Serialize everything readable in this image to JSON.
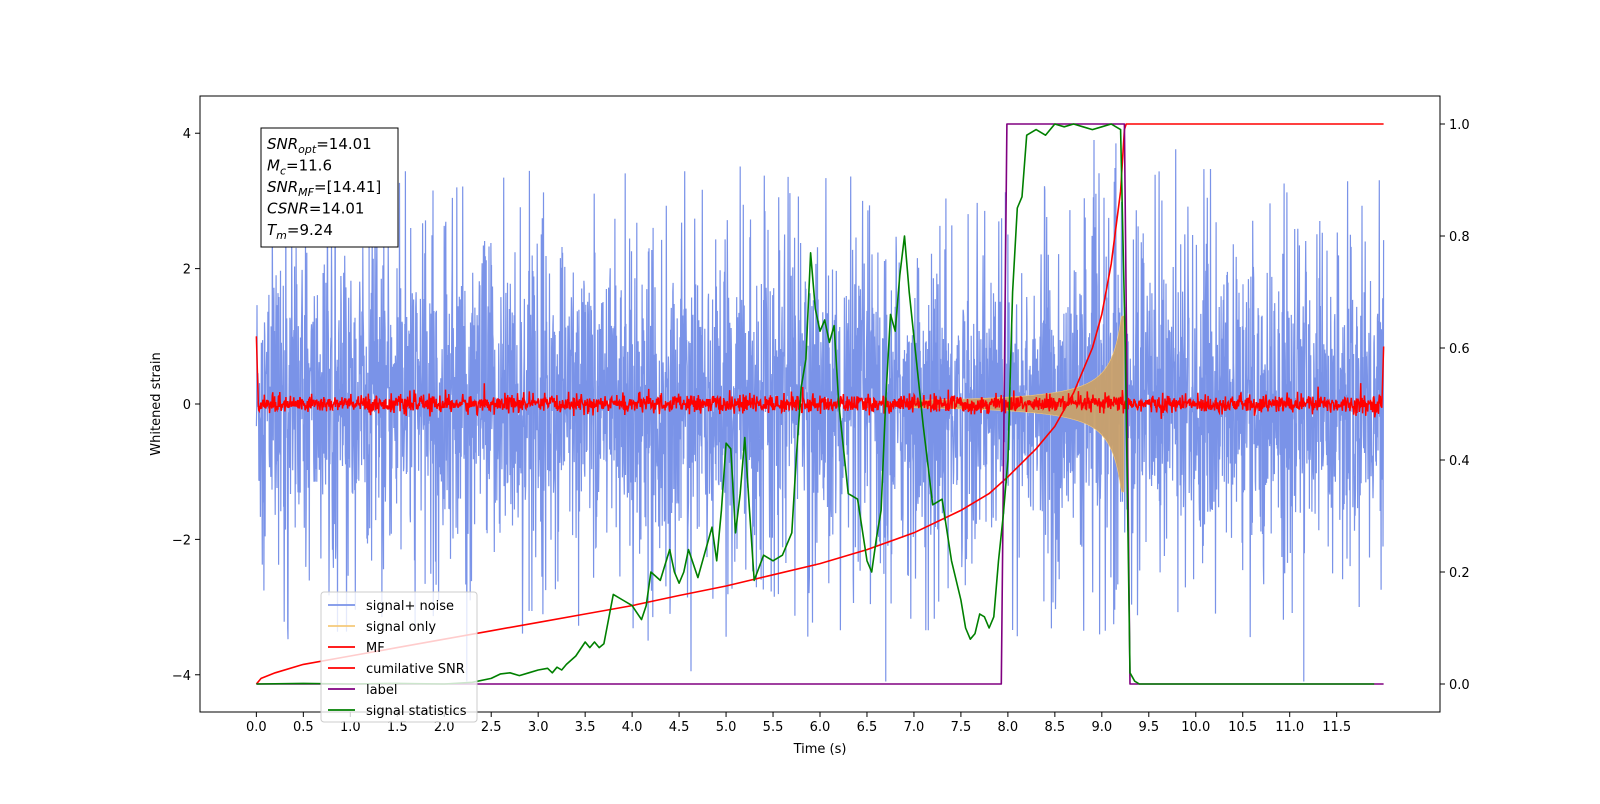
{
  "chart_data": {
    "type": "line",
    "xlabel": "Time (s)",
    "ylabel": "Whitened strain",
    "xlim": [
      -0.6,
      12.6
    ],
    "ylim_left": [
      -4.55,
      4.55
    ],
    "ylim_right": [
      -0.05,
      1.05
    ],
    "x_ticks": [
      0.0,
      0.5,
      1.0,
      1.5,
      2.0,
      2.5,
      3.0,
      3.5,
      4.0,
      4.5,
      5.0,
      5.5,
      6.0,
      6.5,
      7.0,
      7.5,
      8.0,
      8.5,
      9.0,
      9.5,
      10.0,
      10.5,
      11.0,
      11.5
    ],
    "x_tick_labels": [
      "0.0",
      "0.5",
      "1.0",
      "1.5",
      "2.0",
      "2.5",
      "3.0",
      "3.5",
      "4.0",
      "4.5",
      "5.0",
      "5.5",
      "6.0",
      "6.5",
      "7.0",
      "7.5",
      "8.0",
      "8.5",
      "9.0",
      "9.5",
      "10.0",
      "10.5",
      "11.0",
      "11.5"
    ],
    "y_left_ticks": [
      -4,
      -2,
      0,
      2,
      4
    ],
    "y_left_tick_labels": [
      "−4",
      "−2",
      "0",
      "2",
      "4"
    ],
    "y_right_ticks": [
      0.0,
      0.2,
      0.4,
      0.6,
      0.8,
      1.0
    ],
    "y_right_tick_labels": [
      "0.0",
      "0.2",
      "0.4",
      "0.6",
      "0.8",
      "1.0"
    ],
    "legend_position": "lower-left",
    "annotation": {
      "lines": [
        {
          "base": "SNR",
          "sub": "opt",
          "rest": "=14.01"
        },
        {
          "base": "M",
          "sub": "c",
          "rest": "=11.6"
        },
        {
          "base": "SNR",
          "sub": "MF",
          "rest": "=[14.41]"
        },
        {
          "base": "CSNR",
          "sub": "",
          "rest": "=14.01"
        },
        {
          "base": "T",
          "sub": "m",
          "rest": "=9.24"
        }
      ]
    },
    "series": [
      {
        "name": "signal+ noise",
        "color": "#7a93e8",
        "axis": "left",
        "description_values": {
          "x_range": [
            0.0,
            12.0
          ],
          "envelope_typical": [
            -2.8,
            3.0
          ],
          "extreme_min": -4.1,
          "extreme_max": 3.9
        }
      },
      {
        "name": "signal only",
        "color": "#f5c97a",
        "axis": "left",
        "description_values": {
          "chirp_start": 7.0,
          "merger": 9.24,
          "peak_amplitude": 1.3
        }
      },
      {
        "name": "MF",
        "color": "#ff0000",
        "axis": "left",
        "description_values": {
          "baseline": 0.0,
          "noise_amplitude": 0.12,
          "start_value": 1.0,
          "end_value": 0.85
        }
      },
      {
        "name": "cumilative SNR",
        "color": "#ff0000",
        "axis": "right",
        "x": [
          0.0,
          0.05,
          0.2,
          0.5,
          1.0,
          1.5,
          2.0,
          2.5,
          3.0,
          3.5,
          4.0,
          4.5,
          5.0,
          5.5,
          6.0,
          6.5,
          7.0,
          7.5,
          7.8,
          8.0,
          8.3,
          8.5,
          8.7,
          8.9,
          9.0,
          9.1,
          9.2,
          9.24,
          9.26,
          10.0,
          11.0,
          12.0
        ],
        "y": [
          0.0,
          0.01,
          0.02,
          0.035,
          0.05,
          0.065,
          0.08,
          0.095,
          0.11,
          0.125,
          0.14,
          0.158,
          0.175,
          0.195,
          0.215,
          0.24,
          0.27,
          0.31,
          0.34,
          0.37,
          0.42,
          0.46,
          0.52,
          0.6,
          0.66,
          0.75,
          0.88,
          0.99,
          1.0,
          1.0,
          1.0,
          1.0
        ]
      },
      {
        "name": "label",
        "color": "#800080",
        "axis": "right",
        "x": [
          0.0,
          7.93,
          7.99,
          9.24,
          9.3,
          12.0
        ],
        "y": [
          0.0,
          0.0,
          1.0,
          1.0,
          0.0,
          0.0
        ]
      },
      {
        "name": "signal statistics",
        "color": "#008000",
        "axis": "right",
        "x": [
          0.0,
          0.5,
          1.0,
          1.5,
          2.0,
          2.3,
          2.5,
          2.6,
          2.7,
          2.8,
          2.9,
          3.0,
          3.1,
          3.15,
          3.2,
          3.25,
          3.3,
          3.4,
          3.5,
          3.55,
          3.6,
          3.65,
          3.7,
          3.8,
          3.9,
          4.0,
          4.1,
          4.15,
          4.2,
          4.3,
          4.4,
          4.45,
          4.5,
          4.55,
          4.6,
          4.7,
          4.75,
          4.8,
          4.85,
          4.9,
          4.95,
          5.0,
          5.05,
          5.1,
          5.15,
          5.2,
          5.25,
          5.3,
          5.4,
          5.5,
          5.6,
          5.7,
          5.75,
          5.8,
          5.85,
          5.9,
          5.95,
          6.0,
          6.05,
          6.1,
          6.15,
          6.2,
          6.3,
          6.4,
          6.5,
          6.55,
          6.6,
          6.65,
          6.7,
          6.75,
          6.8,
          6.85,
          6.9,
          6.95,
          7.0,
          7.05,
          7.1,
          7.2,
          7.3,
          7.4,
          7.5,
          7.55,
          7.6,
          7.65,
          7.7,
          7.75,
          7.8,
          7.85,
          7.9,
          7.95,
          8.0,
          8.05,
          8.1,
          8.15,
          8.2,
          8.3,
          8.4,
          8.5,
          8.6,
          8.7,
          8.8,
          8.9,
          9.0,
          9.1,
          9.2,
          9.25,
          9.3,
          9.35,
          9.4,
          9.5,
          10.0,
          11.0,
          11.9
        ],
        "y": [
          0.0,
          0.001,
          0.0,
          0.001,
          0.0,
          0.003,
          0.01,
          0.018,
          0.02,
          0.015,
          0.02,
          0.025,
          0.028,
          0.02,
          0.03,
          0.025,
          0.035,
          0.05,
          0.075,
          0.065,
          0.075,
          0.065,
          0.072,
          0.16,
          0.15,
          0.14,
          0.115,
          0.14,
          0.2,
          0.185,
          0.24,
          0.2,
          0.18,
          0.2,
          0.24,
          0.19,
          0.22,
          0.25,
          0.28,
          0.22,
          0.31,
          0.43,
          0.42,
          0.27,
          0.34,
          0.44,
          0.31,
          0.185,
          0.23,
          0.22,
          0.23,
          0.27,
          0.41,
          0.53,
          0.58,
          0.77,
          0.67,
          0.63,
          0.65,
          0.61,
          0.64,
          0.5,
          0.34,
          0.33,
          0.22,
          0.2,
          0.26,
          0.31,
          0.51,
          0.66,
          0.63,
          0.73,
          0.8,
          0.7,
          0.62,
          0.54,
          0.46,
          0.32,
          0.33,
          0.22,
          0.15,
          0.1,
          0.08,
          0.09,
          0.125,
          0.12,
          0.1,
          0.12,
          0.22,
          0.3,
          0.4,
          0.7,
          0.85,
          0.87,
          0.98,
          0.99,
          0.98,
          1.0,
          0.995,
          1.0,
          0.995,
          0.99,
          0.995,
          1.0,
          0.99,
          0.6,
          0.02,
          0.005,
          0.0,
          0.0,
          0.0,
          0.0,
          0.0
        ]
      }
    ]
  }
}
